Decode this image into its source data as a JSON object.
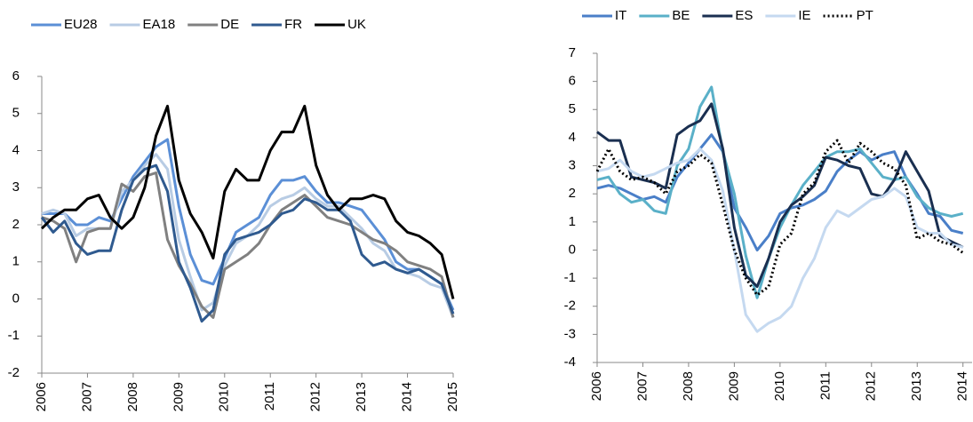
{
  "chart_data": [
    {
      "type": "line",
      "x": [
        2006,
        2006.25,
        2006.5,
        2006.75,
        2007,
        2007.25,
        2007.5,
        2007.75,
        2008,
        2008.25,
        2008.5,
        2008.75,
        2009,
        2009.25,
        2009.5,
        2009.75,
        2010,
        2010.25,
        2010.5,
        2010.75,
        2011,
        2011.25,
        2011.5,
        2011.75,
        2012,
        2012.25,
        2012.5,
        2012.75,
        2013,
        2013.25,
        2013.5,
        2013.75,
        2014,
        2014.25,
        2014.5,
        2014.75,
        2015
      ],
      "xlim": [
        2006,
        2015
      ],
      "xticks": [
        2006,
        2007,
        2008,
        2009,
        2010,
        2011,
        2012,
        2013,
        2014,
        2015
      ],
      "ylim": [
        -2,
        6
      ],
      "yticks": [
        -2,
        -1,
        0,
        1,
        2,
        3,
        4,
        5,
        6
      ],
      "grid": false,
      "legend": "top",
      "series": [
        {
          "name": "EU28",
          "color": "#5b8fd6",
          "values": [
            2.3,
            2.3,
            2.3,
            2.0,
            2.0,
            2.2,
            2.1,
            2.7,
            3.3,
            3.7,
            4.1,
            4.3,
            2.5,
            1.2,
            0.5,
            0.4,
            1.1,
            1.8,
            2.0,
            2.2,
            2.8,
            3.2,
            3.2,
            3.3,
            2.9,
            2.6,
            2.6,
            2.5,
            2.4,
            2.0,
            1.6,
            1.0,
            0.8,
            0.8,
            0.6,
            0.4,
            -0.3
          ]
        },
        {
          "name": "EA18",
          "color": "#b8cce4",
          "values": [
            2.3,
            2.4,
            2.3,
            1.7,
            1.9,
            1.9,
            1.9,
            2.9,
            3.2,
            3.6,
            3.9,
            3.5,
            1.6,
            0.6,
            -0.3,
            -0.1,
            0.9,
            1.5,
            1.7,
            2.0,
            2.5,
            2.7,
            2.8,
            3.0,
            2.7,
            2.5,
            2.5,
            2.2,
            1.9,
            1.5,
            1.3,
            0.8,
            0.7,
            0.6,
            0.4,
            0.3,
            -0.5
          ]
        },
        {
          "name": "DE",
          "color": "#808080",
          "values": [
            2.2,
            2.1,
            1.9,
            1.0,
            1.8,
            1.9,
            1.9,
            3.1,
            2.9,
            3.3,
            3.4,
            1.6,
            0.9,
            0.4,
            -0.2,
            -0.5,
            0.8,
            1.0,
            1.2,
            1.5,
            2.0,
            2.4,
            2.6,
            2.8,
            2.5,
            2.2,
            2.1,
            2.0,
            1.8,
            1.6,
            1.5,
            1.3,
            1.0,
            0.9,
            0.8,
            0.6,
            -0.5
          ]
        },
        {
          "name": "FR",
          "color": "#2f5a8f",
          "values": [
            2.2,
            1.8,
            2.1,
            1.5,
            1.2,
            1.3,
            1.3,
            2.4,
            3.2,
            3.5,
            3.6,
            2.9,
            1.0,
            0.3,
            -0.6,
            -0.3,
            1.2,
            1.6,
            1.7,
            1.8,
            2.0,
            2.3,
            2.4,
            2.7,
            2.6,
            2.4,
            2.4,
            2.1,
            1.2,
            0.9,
            1.0,
            0.8,
            0.7,
            0.8,
            0.6,
            0.4,
            -0.4
          ]
        },
        {
          "name": "UK",
          "color": "#000000",
          "values": [
            1.9,
            2.2,
            2.4,
            2.4,
            2.7,
            2.8,
            2.2,
            1.9,
            2.2,
            3.0,
            4.4,
            5.2,
            3.2,
            2.3,
            1.8,
            1.1,
            2.9,
            3.5,
            3.2,
            3.2,
            4.0,
            4.5,
            4.5,
            5.2,
            3.6,
            2.8,
            2.4,
            2.7,
            2.7,
            2.8,
            2.7,
            2.1,
            1.8,
            1.7,
            1.5,
            1.2,
            0.0
          ]
        }
      ]
    },
    {
      "type": "line",
      "x": [
        2006,
        2006.25,
        2006.5,
        2006.75,
        2007,
        2007.25,
        2007.5,
        2007.75,
        2008,
        2008.25,
        2008.5,
        2008.75,
        2009,
        2009.25,
        2009.5,
        2009.75,
        2010,
        2010.25,
        2010.5,
        2010.75,
        2011,
        2011.25,
        2011.5,
        2011.75,
        2012,
        2012.25,
        2012.5,
        2012.75,
        2013,
        2013.25,
        2013.5,
        2013.75,
        2014
      ],
      "xlim": [
        2006,
        2014.2
      ],
      "xticks": [
        2006,
        2007,
        2008,
        2009,
        2010,
        2011,
        2012,
        2013,
        2014
      ],
      "ylim": [
        -4,
        7
      ],
      "yticks": [
        -4,
        -3,
        -2,
        -1,
        0,
        1,
        2,
        3,
        4,
        5,
        6,
        7
      ],
      "grid": false,
      "legend": "top",
      "series": [
        {
          "name": "IT",
          "color": "#4a7fc8",
          "values": [
            2.2,
            2.3,
            2.2,
            2.0,
            1.8,
            1.9,
            1.7,
            2.6,
            3.1,
            3.6,
            4.1,
            3.5,
            1.5,
            0.8,
            0.0,
            0.5,
            1.3,
            1.5,
            1.6,
            1.8,
            2.1,
            2.8,
            3.2,
            3.5,
            3.2,
            3.4,
            3.5,
            2.6,
            2.0,
            1.3,
            1.2,
            0.7,
            0.6
          ]
        },
        {
          "name": "BE",
          "color": "#5ab0c8",
          "values": [
            2.5,
            2.6,
            2.0,
            1.7,
            1.8,
            1.4,
            1.3,
            3.0,
            3.6,
            5.1,
            5.8,
            3.5,
            2.0,
            -0.2,
            -1.7,
            -0.3,
            0.8,
            1.6,
            2.3,
            2.8,
            3.3,
            3.5,
            3.5,
            3.6,
            3.1,
            2.6,
            2.5,
            2.6,
            1.9,
            1.5,
            1.3,
            1.2,
            1.3
          ]
        },
        {
          "name": "ES",
          "color": "#1a2f50",
          "values": [
            4.2,
            3.9,
            3.9,
            2.6,
            2.5,
            2.4,
            2.2,
            4.1,
            4.4,
            4.6,
            5.2,
            3.6,
            0.8,
            -0.9,
            -1.3,
            -0.3,
            1.0,
            1.6,
            1.9,
            2.3,
            3.3,
            3.2,
            3.0,
            2.9,
            2.0,
            1.9,
            2.5,
            3.5,
            2.8,
            2.1,
            0.5,
            0.3,
            0.1
          ]
        },
        {
          "name": "IE",
          "color": "#c5d9f0",
          "values": [
            2.8,
            2.9,
            3.2,
            2.8,
            2.6,
            2.7,
            2.9,
            3.1,
            3.2,
            3.6,
            3.2,
            2.1,
            0.0,
            -2.3,
            -2.9,
            -2.6,
            -2.4,
            -2.0,
            -1.0,
            -0.3,
            0.8,
            1.4,
            1.2,
            1.5,
            1.8,
            1.9,
            2.2,
            1.9,
            0.8,
            0.6,
            0.6,
            0.2,
            0.1
          ]
        },
        {
          "name": "PT",
          "color": "#000000",
          "line_style": "dotted",
          "values": [
            2.8,
            3.6,
            2.8,
            2.5,
            2.6,
            2.4,
            2.0,
            2.8,
            3.0,
            3.4,
            3.1,
            1.6,
            0.0,
            -1.0,
            -1.6,
            -1.3,
            0.2,
            0.6,
            2.0,
            2.4,
            3.5,
            3.9,
            3.1,
            3.8,
            3.5,
            3.1,
            2.9,
            2.3,
            0.4,
            0.6,
            0.3,
            0.2,
            -0.1
          ]
        }
      ]
    }
  ]
}
